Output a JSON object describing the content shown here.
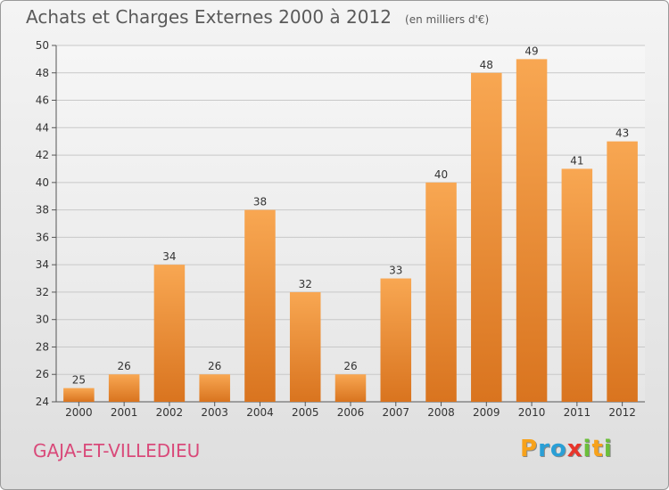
{
  "header": {
    "title": "Achats et Charges Externes 2000 à 2012",
    "subtitle": "(en milliers d'€)"
  },
  "footer": {
    "commune": "GAJA-ET-VILLEDIEU",
    "logo_letters": [
      "P",
      "r",
      "o",
      "x",
      "i",
      "t",
      "i"
    ],
    "logo_colors": [
      "#f7a21b",
      "#2a9fd6",
      "#2a9fd6",
      "#e8352b",
      "#6bbf3a",
      "#f7a21b",
      "#6bbf3a"
    ]
  },
  "colors": {
    "bar_light": "#f8a752",
    "bar_dark": "#d9741f",
    "grid": "#c8c8c8",
    "commune_text": "#d94a7a"
  },
  "chart_data": {
    "type": "bar",
    "title": "Achats et Charges Externes 2000 à 2012",
    "subtitle": "(en milliers d'€)",
    "categories": [
      "2000",
      "2001",
      "2002",
      "2003",
      "2004",
      "2005",
      "2006",
      "2007",
      "2008",
      "2009",
      "2010",
      "2011",
      "2012"
    ],
    "values": [
      25,
      26,
      34,
      26,
      38,
      32,
      26,
      33,
      40,
      48,
      49,
      41,
      43
    ],
    "ylim": [
      24,
      50
    ],
    "yticks": [
      24,
      26,
      28,
      30,
      32,
      34,
      36,
      38,
      40,
      42,
      44,
      46,
      48,
      50
    ],
    "grid": true,
    "xlabel": "",
    "ylabel": ""
  }
}
